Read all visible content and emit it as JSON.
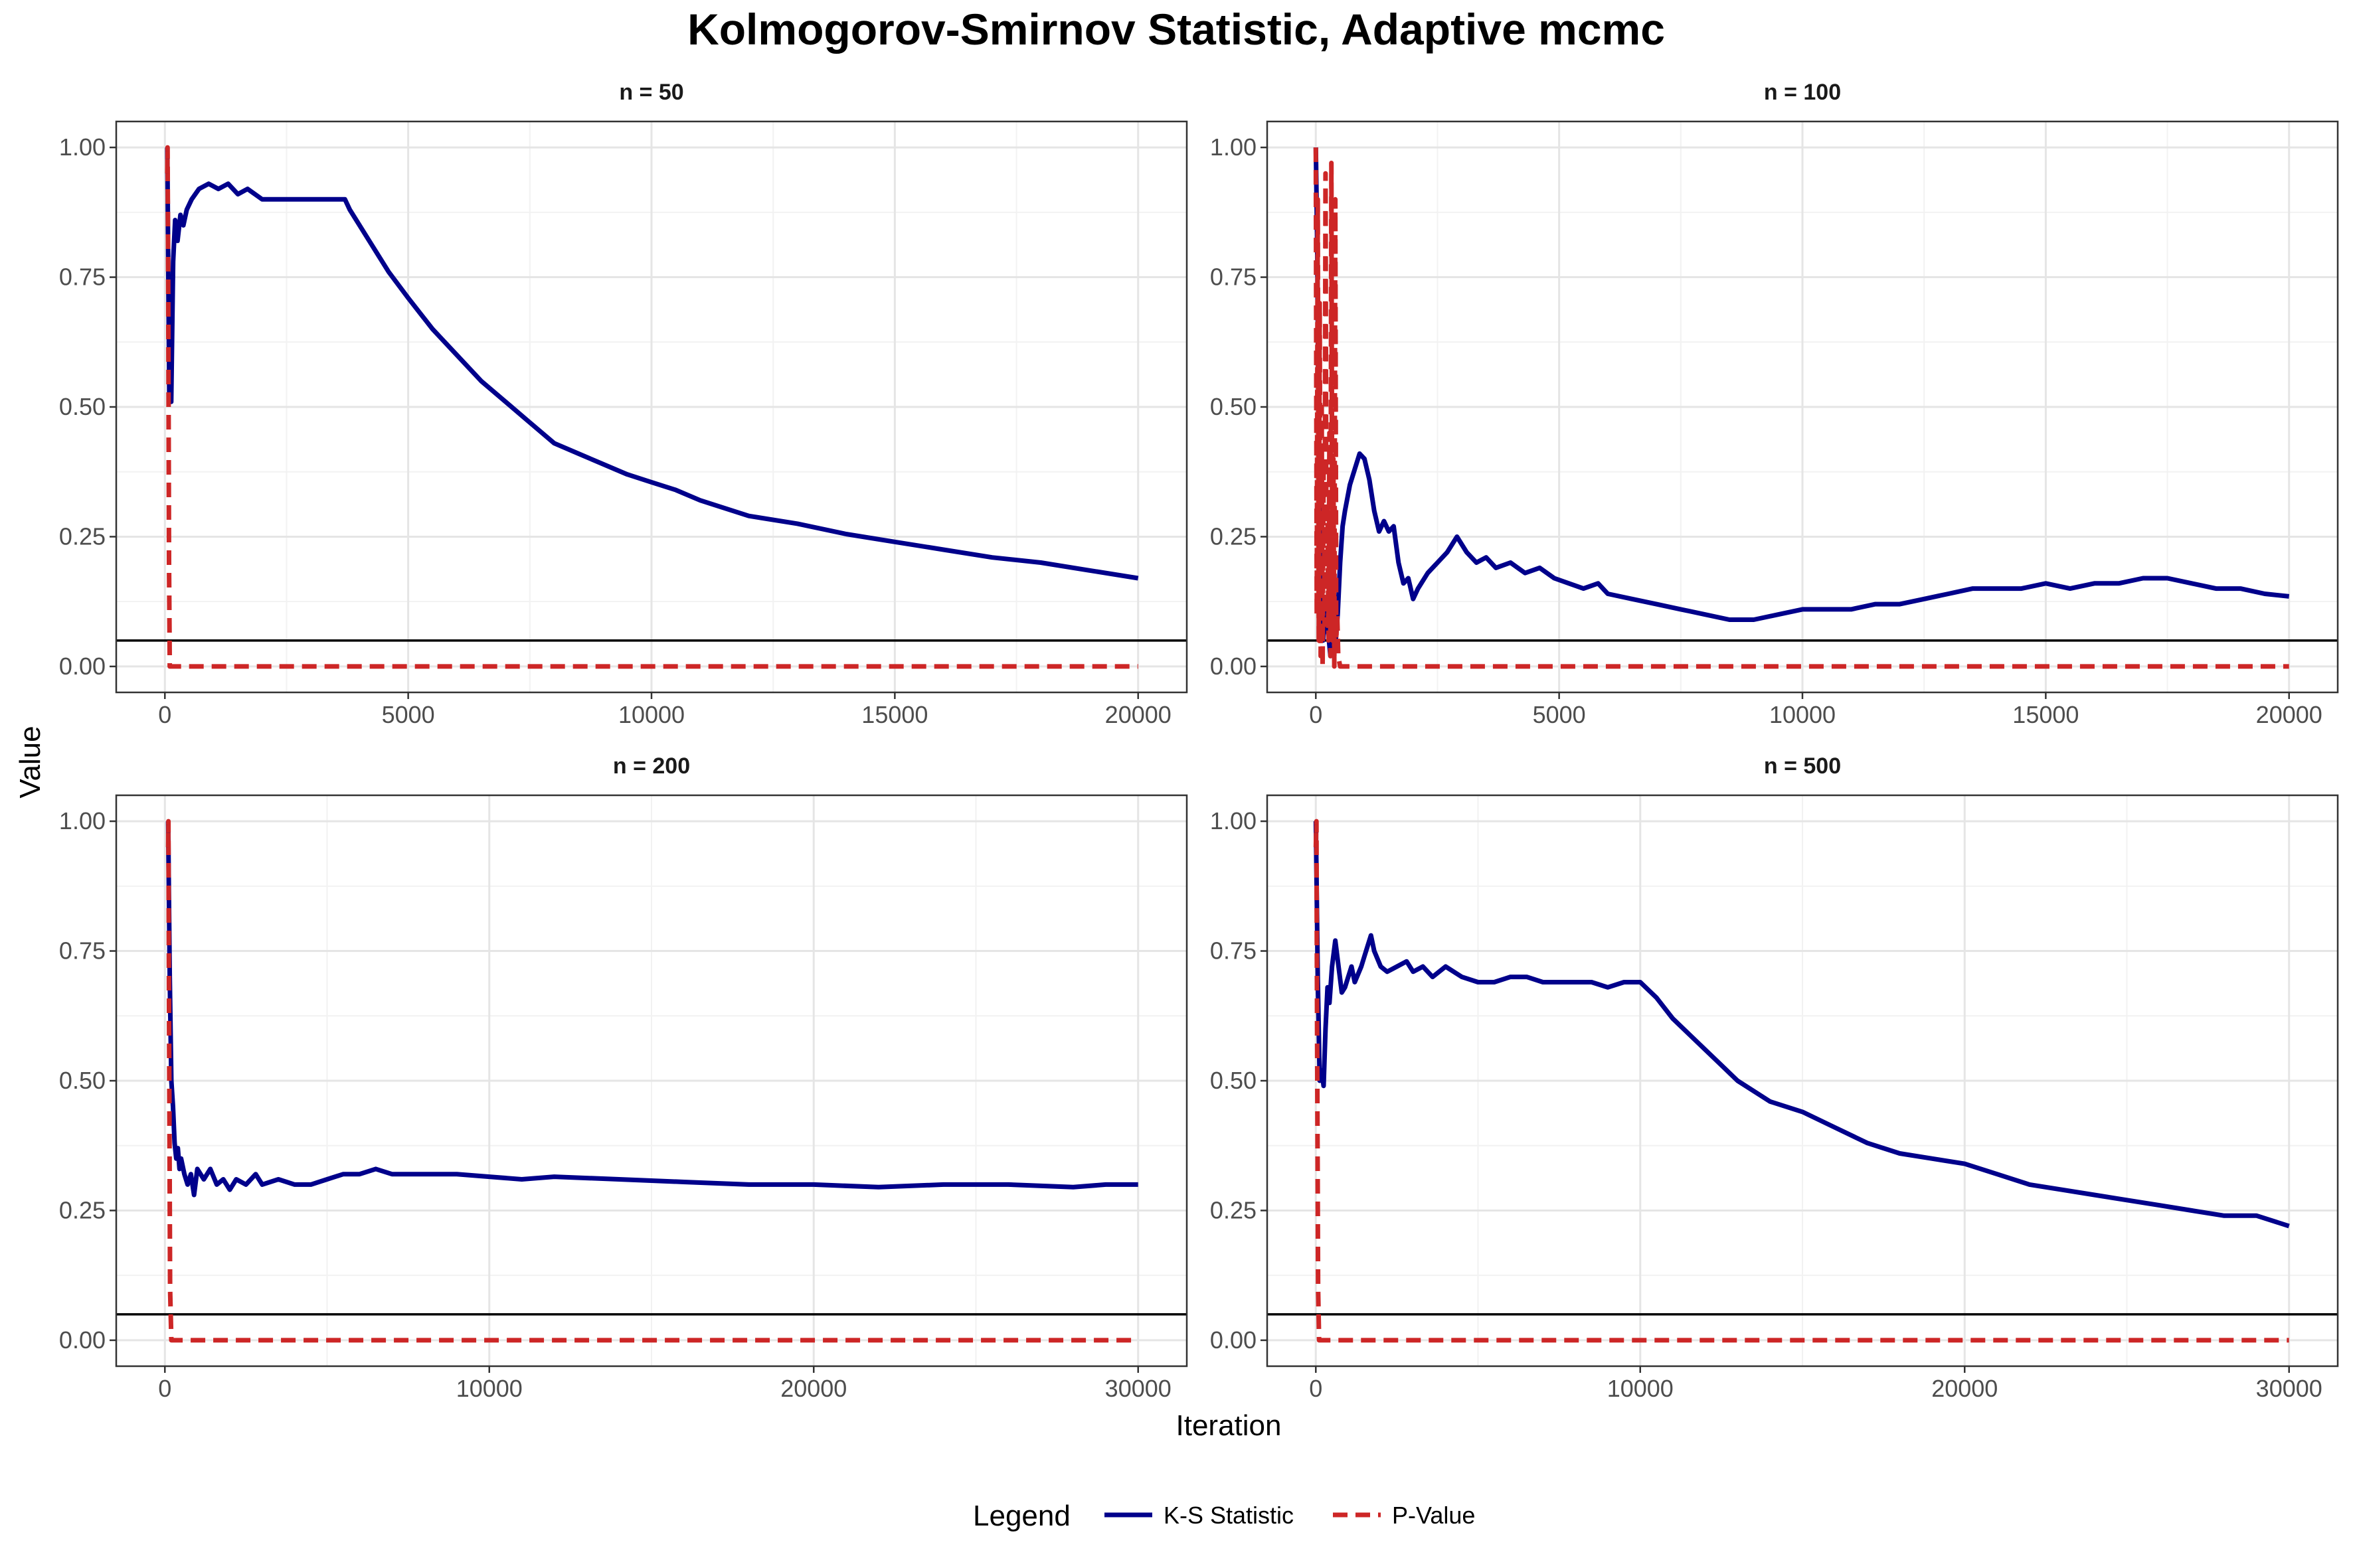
{
  "chart_data": {
    "type": "line",
    "title": "Kolmogorov-Smirnov Statistic, Adaptive mcmc",
    "xlabel": "Iteration",
    "ylabel": "Value",
    "legend": {
      "title": "Legend",
      "position": "bottom",
      "entries": [
        {
          "name": "K-S Statistic",
          "color": "#00008B",
          "style": "solid"
        },
        {
          "name": "P-Value",
          "color": "#CD2626",
          "style": "dashed"
        }
      ]
    },
    "reference_line": {
      "y": 0.05,
      "color": "#000000"
    },
    "grid": true,
    "panels": [
      {
        "strip": "n = 50",
        "xlim": [
          -1000,
          21000
        ],
        "ylim": [
          -0.05,
          1.05
        ],
        "xticks": [
          0,
          5000,
          10000,
          15000,
          20000
        ],
        "yticks": [
          0,
          0.25,
          0.5,
          0.75,
          1
        ],
        "ytick_labels": [
          "0.00",
          "0.25",
          "0.50",
          "0.75",
          "1.00"
        ],
        "series": [
          {
            "name": "K-S Statistic",
            "x": [
              50,
              90,
              130,
              170,
              210,
              260,
              320,
              380,
              450,
              550,
              700,
              900,
              1100,
              1300,
              1500,
              1700,
              2000,
              2300,
              2600,
              3000,
              3300,
              3700,
              3800,
              4200,
              4600,
              5000,
              5500,
              6000,
              6500,
              7000,
              7500,
              8000,
              8500,
              9000,
              9500,
              10000,
              10500,
              11000,
              12000,
              13000,
              14000,
              15000,
              16000,
              17000,
              18000,
              19000,
              20000
            ],
            "y": [
              1.0,
              0.52,
              0.51,
              0.78,
              0.86,
              0.82,
              0.87,
              0.85,
              0.88,
              0.9,
              0.92,
              0.93,
              0.92,
              0.93,
              0.91,
              0.92,
              0.9,
              0.9,
              0.9,
              0.9,
              0.9,
              0.9,
              0.88,
              0.82,
              0.76,
              0.71,
              0.65,
              0.6,
              0.55,
              0.51,
              0.47,
              0.43,
              0.41,
              0.39,
              0.37,
              0.355,
              0.34,
              0.32,
              0.29,
              0.275,
              0.255,
              0.24,
              0.225,
              0.21,
              0.2,
              0.185,
              0.17
            ]
          },
          {
            "name": "P-Value",
            "x": [
              50,
              55,
              70,
              85,
              100,
              20000
            ],
            "y": [
              0.95,
              1.0,
              0.7,
              0.2,
              0.0,
              0.0
            ]
          }
        ]
      },
      {
        "strip": "n = 100",
        "xlim": [
          -1000,
          21000
        ],
        "ylim": [
          -0.05,
          1.05
        ],
        "xticks": [
          0,
          5000,
          10000,
          15000,
          20000
        ],
        "yticks": [
          0,
          0.25,
          0.5,
          0.75,
          1
        ],
        "ytick_labels": [
          "0.00",
          "0.25",
          "0.50",
          "0.75",
          "1.00"
        ],
        "series": [
          {
            "name": "K-S Statistic",
            "x": [
              0,
              30,
              60,
              90,
              120,
              150,
              180,
              220,
              260,
              300,
              350,
              400,
              450,
              500,
              550,
              600,
              700,
              800,
              900,
              1000,
              1100,
              1200,
              1300,
              1400,
              1500,
              1600,
              1700,
              1800,
              1900,
              2000,
              2100,
              2300,
              2500,
              2700,
              2900,
              3100,
              3300,
              3500,
              3700,
              4000,
              4300,
              4600,
              4900,
              5200,
              5500,
              5800,
              6000,
              6500,
              7000,
              7500,
              8000,
              8500,
              9000,
              9500,
              10000,
              10500,
              11000,
              11500,
              12000,
              12500,
              13000,
              13500,
              14000,
              14500,
              15000,
              15500,
              16000,
              16500,
              17000,
              17500,
              18000,
              18500,
              19000,
              19500,
              20000
            ],
            "y": [
              1.0,
              0.8,
              0.4,
              0.2,
              0.1,
              0.05,
              0.12,
              0.08,
              0.06,
              0.02,
              0.06,
              0.04,
              0.1,
              0.2,
              0.27,
              0.3,
              0.35,
              0.38,
              0.41,
              0.4,
              0.36,
              0.3,
              0.26,
              0.28,
              0.26,
              0.27,
              0.2,
              0.16,
              0.17,
              0.13,
              0.15,
              0.18,
              0.2,
              0.22,
              0.25,
              0.22,
              0.2,
              0.21,
              0.19,
              0.2,
              0.18,
              0.19,
              0.17,
              0.16,
              0.15,
              0.16,
              0.14,
              0.13,
              0.12,
              0.11,
              0.1,
              0.09,
              0.09,
              0.1,
              0.11,
              0.11,
              0.11,
              0.12,
              0.12,
              0.13,
              0.14,
              0.15,
              0.15,
              0.15,
              0.16,
              0.15,
              0.16,
              0.16,
              0.17,
              0.17,
              0.16,
              0.15,
              0.15,
              0.14,
              0.135
            ]
          },
          {
            "name": "P-Value",
            "x": [
              0,
              20,
              40,
              60,
              80,
              100,
              120,
              140,
              160,
              180,
              200,
              220,
              240,
              260,
              280,
              300,
              320,
              340,
              360,
              380,
              400,
              420,
              440,
              460,
              500,
              20000
            ],
            "y": [
              1.0,
              0.1,
              0.9,
              0.05,
              0.7,
              0.02,
              0.5,
              0.0,
              0.4,
              0.08,
              0.95,
              0.1,
              0.3,
              0.05,
              0.45,
              0.02,
              0.97,
              0.05,
              0.4,
              0.0,
              0.9,
              0.05,
              0.1,
              0.02,
              0.0,
              0.0
            ]
          }
        ]
      },
      {
        "strip": "n = 200",
        "xlim": [
          -1500,
          31500
        ],
        "ylim": [
          -0.05,
          1.05
        ],
        "xticks": [
          0,
          10000,
          20000,
          30000
        ],
        "yticks": [
          0,
          0.25,
          0.5,
          0.75,
          1
        ],
        "ytick_labels": [
          "0.00",
          "0.25",
          "0.50",
          "0.75",
          "1.00"
        ],
        "series": [
          {
            "name": "K-S Statistic",
            "x": [
              100,
              150,
              200,
              250,
              300,
              350,
              400,
              450,
              500,
              600,
              700,
              800,
              900,
              1000,
              1200,
              1400,
              1600,
              1800,
              2000,
              2200,
              2500,
              2800,
              3000,
              3500,
              4000,
              4500,
              5000,
              5500,
              6000,
              6500,
              7000,
              8000,
              9000,
              10000,
              11000,
              12000,
              14000,
              16000,
              18000,
              20000,
              22000,
              24000,
              26000,
              28000,
              29000,
              30000
            ],
            "y": [
              1.0,
              0.7,
              0.5,
              0.45,
              0.38,
              0.35,
              0.37,
              0.33,
              0.35,
              0.32,
              0.3,
              0.32,
              0.28,
              0.33,
              0.31,
              0.33,
              0.3,
              0.31,
              0.29,
              0.31,
              0.3,
              0.32,
              0.3,
              0.31,
              0.3,
              0.3,
              0.31,
              0.32,
              0.32,
              0.33,
              0.32,
              0.32,
              0.32,
              0.315,
              0.31,
              0.315,
              0.31,
              0.305,
              0.3,
              0.3,
              0.295,
              0.3,
              0.3,
              0.295,
              0.3,
              0.3
            ]
          },
          {
            "name": "P-Value",
            "x": [
              100,
              110,
              130,
              160,
              200,
              30000
            ],
            "y": [
              0.95,
              1.0,
              0.6,
              0.1,
              0.0,
              0.0
            ]
          }
        ]
      },
      {
        "strip": "n = 500",
        "xlim": [
          -1500,
          31500
        ],
        "ylim": [
          -0.05,
          1.05
        ],
        "xticks": [
          0,
          10000,
          20000,
          30000
        ],
        "yticks": [
          0,
          0.25,
          0.5,
          0.75,
          1
        ],
        "ytick_labels": [
          "0.00",
          "0.25",
          "0.50",
          "0.75",
          "1.00"
        ],
        "series": [
          {
            "name": "K-S Statistic",
            "x": [
              0,
              60,
              120,
              180,
              240,
              300,
              360,
              420,
              500,
              600,
              700,
              800,
              900,
              1000,
              1100,
              1200,
              1400,
              1500,
              1600,
              1700,
              1800,
              2000,
              2200,
              2500,
              2800,
              3000,
              3300,
              3600,
              4000,
              4500,
              5000,
              5500,
              6000,
              6500,
              7000,
              7500,
              8000,
              8500,
              9000,
              9500,
              10000,
              10500,
              11000,
              11500,
              12000,
              12500,
              13000,
              14000,
              15000,
              16000,
              17000,
              18000,
              19000,
              20000,
              21000,
              22000,
              23000,
              24000,
              25000,
              26000,
              27000,
              28000,
              29000,
              30000
            ],
            "y": [
              1.0,
              0.7,
              0.5,
              0.52,
              0.49,
              0.6,
              0.68,
              0.65,
              0.72,
              0.77,
              0.72,
              0.67,
              0.68,
              0.7,
              0.72,
              0.69,
              0.72,
              0.74,
              0.76,
              0.78,
              0.75,
              0.72,
              0.71,
              0.72,
              0.73,
              0.71,
              0.72,
              0.7,
              0.72,
              0.7,
              0.69,
              0.69,
              0.7,
              0.7,
              0.69,
              0.69,
              0.69,
              0.69,
              0.68,
              0.69,
              0.69,
              0.66,
              0.62,
              0.59,
              0.56,
              0.53,
              0.5,
              0.46,
              0.44,
              0.41,
              0.38,
              0.36,
              0.35,
              0.34,
              0.32,
              0.3,
              0.29,
              0.28,
              0.27,
              0.26,
              0.25,
              0.24,
              0.24,
              0.22
            ]
          },
          {
            "name": "P-Value",
            "x": [
              0,
              20,
              40,
              70,
              100,
              30000
            ],
            "y": [
              0.95,
              1.0,
              0.6,
              0.1,
              0.0,
              0.0
            ]
          }
        ]
      }
    ]
  }
}
